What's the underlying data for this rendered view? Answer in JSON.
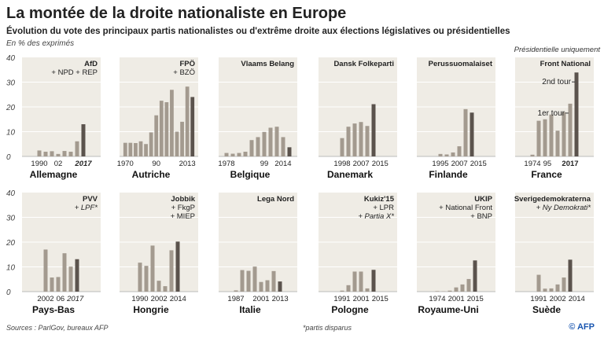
{
  "title": "La montée de la droite nationaliste en Europe",
  "subtitle": "Évolution du vote des principaux partis nationalistes ou d'extrême droite aux élections législatives ou présidentielles",
  "unit": "En % des exprimés",
  "source": "Sources : ParlGov, bureaux AFP",
  "note": "*partis disparus",
  "credit": "© AFP",
  "colors": {
    "panel": "#efece5",
    "bar": "#a39a8f",
    "bar_last": "#5b534d",
    "grid": "#ffffff"
  },
  "chart_data": {
    "type": "bar",
    "ylabel": "En % des exprimés",
    "ylim": [
      0,
      40
    ],
    "yticks": [
      "0",
      "10",
      "20",
      "30",
      "40"
    ],
    "grid": true,
    "panels": [
      {
        "country": "Allemagne",
        "party": [
          {
            "t": "AfD",
            "b": true
          },
          {
            "t": "+ NPD + REP"
          }
        ],
        "years": [
          1990,
          1994,
          1998,
          2002,
          2005,
          2009,
          2013,
          2017
        ],
        "values": [
          2.4,
          1.9,
          2.1,
          1.0,
          2.2,
          1.9,
          6.1,
          13.0
        ],
        "ticks": [
          {
            "label": "1990",
            "year": 1990
          },
          {
            "label": "02",
            "year": 2002
          },
          {
            "label": "2017",
            "year": 2017,
            "bold": true,
            "italic": true
          }
        ]
      },
      {
        "country": "Autriche",
        "party": [
          {
            "t": "FPÖ",
            "b": true
          },
          {
            "t": "+ BZÖ"
          }
        ],
        "years": [
          1970,
          1971,
          1975,
          1979,
          1983,
          1986,
          1990,
          1994,
          1995,
          1999,
          2002,
          2006,
          2008,
          2013
        ],
        "values": [
          5.5,
          5.5,
          5.4,
          6.1,
          5.0,
          9.7,
          16.6,
          22.5,
          21.9,
          26.9,
          10.0,
          14.0,
          28.2,
          24.0
        ],
        "ticks": [
          {
            "label": "1970",
            "year": 1970
          },
          {
            "label": "90",
            "year": 1990
          },
          {
            "label": "2013",
            "year": 2008
          }
        ]
      },
      {
        "country": "Belgique",
        "party": [
          {
            "t": "Vlaams Belang",
            "b": true
          }
        ],
        "years": [
          1978,
          1981,
          1985,
          1987,
          1991,
          1995,
          1999,
          2003,
          2007,
          2010,
          2014
        ],
        "values": [
          1.4,
          1.1,
          1.4,
          1.9,
          6.6,
          7.8,
          9.9,
          11.6,
          12.0,
          7.8,
          3.7
        ],
        "ticks": [
          {
            "label": "1978",
            "year": 1978
          },
          {
            "label": "99",
            "year": 1999
          },
          {
            "label": "2014",
            "year": 2010
          }
        ]
      },
      {
        "country": "Danemark",
        "party": [
          {
            "t": "Dansk Folkeparti",
            "b": true
          }
        ],
        "years": [
          1998,
          2001,
          2005,
          2007,
          2011,
          2015
        ],
        "values": [
          7.4,
          12.0,
          13.3,
          13.9,
          12.3,
          21.1
        ],
        "ticks": [
          {
            "label": "1998",
            "year": 1998
          },
          {
            "label": "2007",
            "year": 2007
          },
          {
            "label": "2015",
            "year": 2015
          }
        ]
      },
      {
        "country": "Finlande",
        "party": [
          {
            "t": "Perussuomalaiset",
            "b": true
          }
        ],
        "years": [
          1995,
          1999,
          2003,
          2007,
          2011,
          2015
        ],
        "values": [
          1.0,
          0.8,
          1.6,
          4.1,
          19.1,
          17.7
        ],
        "ticks": [
          {
            "label": "1995",
            "year": 1995
          },
          {
            "label": "2007",
            "year": 2003
          },
          {
            "label": "2015",
            "year": 2011
          }
        ]
      },
      {
        "country": "France",
        "party": [
          {
            "t": "Front National",
            "b": true
          }
        ],
        "note": "Présidentielle uniquement",
        "annotations": {
          "first": "1er tour",
          "second": "2nd tour"
        },
        "years": [
          1974,
          1988,
          1995,
          2002,
          2007,
          2012,
          "2017 (1er tour)",
          "2017 (2nd tour)"
        ],
        "values": [
          0.7,
          14.4,
          15.0,
          16.9,
          10.4,
          17.9,
          21.3,
          33.9
        ],
        "ticks": [
          {
            "label": "1974",
            "year": 1974
          },
          {
            "label": "95",
            "year": 1995
          },
          {
            "label": "2017",
            "year": "2017 (1er tour)",
            "bold": true
          }
        ]
      },
      {
        "country": "Pays-Bas",
        "party": [
          {
            "t": "PVV",
            "b": true
          },
          {
            "t": "+ LPF*",
            "i": true
          }
        ],
        "years": [
          2002,
          2003,
          2006,
          2010,
          2012,
          2017
        ],
        "values": [
          17.0,
          5.7,
          5.9,
          15.5,
          10.1,
          13.1
        ],
        "ticks": [
          {
            "label": "2002",
            "year": 2002
          },
          {
            "label": "06",
            "year": 2006
          },
          {
            "label": "2017",
            "year": 2012,
            "italic": true
          }
        ]
      },
      {
        "country": "Hongrie",
        "party": [
          {
            "t": "Jobbik",
            "b": true
          },
          {
            "t": "+ FkgP"
          },
          {
            "t": "+ MIEP"
          }
        ],
        "years": [
          1990,
          1994,
          1998,
          2002,
          2006,
          2010,
          2014
        ],
        "values": [
          11.7,
          10.4,
          18.6,
          4.4,
          2.2,
          16.7,
          20.2
        ],
        "ticks": [
          {
            "label": "1990",
            "year": 1990
          },
          {
            "label": "2002",
            "year": 2002
          },
          {
            "label": "2014",
            "year": 2010
          }
        ]
      },
      {
        "country": "Italie",
        "party": [
          {
            "t": "Lega Nord",
            "b": true
          }
        ],
        "years": [
          1987,
          1992,
          1994,
          1996,
          2001,
          2006,
          2008,
          2013
        ],
        "values": [
          0.5,
          8.7,
          8.4,
          10.1,
          3.9,
          4.6,
          8.3,
          4.1
        ],
        "ticks": [
          {
            "label": "1987",
            "year": 1987
          },
          {
            "label": "2001",
            "year": 2001
          },
          {
            "label": "2013",
            "year": 2008
          }
        ]
      },
      {
        "country": "Pologne",
        "party": [
          {
            "t": "Kukiz'15",
            "b": true
          },
          {
            "t": "+ LPR"
          },
          {
            "t": "+ Partia X*",
            "i": true
          }
        ],
        "years": [
          1997,
          2001,
          2005,
          2007,
          2011,
          2015
        ],
        "values": [
          0.4,
          2.6,
          8.1,
          8.1,
          1.3,
          8.8
        ],
        "ticks": [
          {
            "label": "1991",
            "year": 1997
          },
          {
            "label": "2001",
            "year": 2005
          },
          {
            "label": "2015",
            "year": 2011
          }
        ]
      },
      {
        "country": "Royaume-Uni",
        "party": [
          {
            "t": "UKIP",
            "b": true
          },
          {
            "t": "+ National Front"
          },
          {
            "t": "+ BNP"
          }
        ],
        "years": [
          1974,
          1979,
          1997,
          2001,
          2005,
          2010,
          2015
        ],
        "values": [
          0.2,
          0.1,
          0.4,
          1.7,
          2.9,
          5.1,
          12.6
        ],
        "ticks": [
          {
            "label": "1974",
            "year": 1974
          },
          {
            "label": "2001",
            "year": 1997
          },
          {
            "label": "2015",
            "year": 2010
          }
        ]
      },
      {
        "country": "Suède",
        "party": [
          {
            "t": "Sverigedemokraterna",
            "b": true
          },
          {
            "t": "+ Ny Demokrati*",
            "i": true
          }
        ],
        "years": [
          1991,
          1998,
          2002,
          2006,
          2010,
          2014
        ],
        "values": [
          6.8,
          1.2,
          1.3,
          2.9,
          5.7,
          12.9
        ],
        "ticks": [
          {
            "label": "1991",
            "year": 1991
          },
          {
            "label": "2002",
            "year": 2002
          },
          {
            "label": "2014",
            "year": 2010
          }
        ]
      }
    ]
  }
}
